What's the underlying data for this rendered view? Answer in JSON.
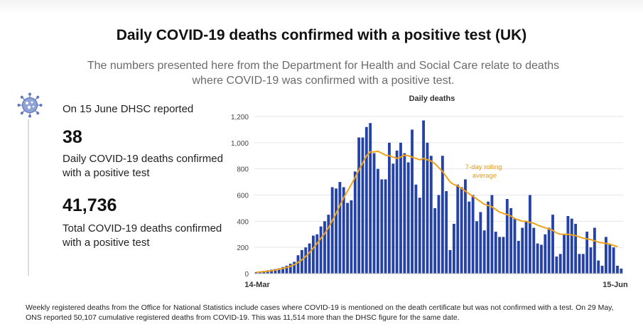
{
  "slide": {
    "title": "Daily COVID-19 deaths confirmed with a positive test (UK)",
    "subtitle": "The numbers presented here from the Department for Health and Social Care relate to deaths where COVID-19 was confirmed with a positive test."
  },
  "stats": {
    "reported_label": "On 15 June DHSC reported",
    "daily_value": "38",
    "daily_desc": "Daily COVID-19 deaths confirmed with a positive test",
    "total_value": "41,736",
    "total_desc": "Total COVID-19 deaths confirmed with a positive test"
  },
  "icons": {
    "virus": "virus-icon"
  },
  "colors": {
    "bar": "#2442a8",
    "line": "#f0a21a",
    "gridline": "#e6e6e6"
  },
  "chart_data": {
    "type": "bar",
    "title": "Daily deaths",
    "x_start_label": "14-Mar",
    "x_end_label": "15-Jun",
    "ylim": [
      0,
      1200
    ],
    "yticks": [
      0,
      200,
      400,
      600,
      800,
      1000,
      1200
    ],
    "ytick_labels": [
      "0",
      "200",
      "400",
      "600",
      "800",
      "1,000",
      "1,200"
    ],
    "annotation": "7-day rolling average",
    "series": [
      {
        "type": "bar",
        "values": [
          10,
          15,
          20,
          25,
          30,
          35,
          40,
          50,
          60,
          75,
          90,
          140,
          180,
          200,
          230,
          290,
          300,
          360,
          400,
          450,
          660,
          650,
          700,
          660,
          540,
          560,
          780,
          1040,
          1040,
          1120,
          1150,
          920,
          800,
          720,
          720,
          1000,
          840,
          940,
          1000,
          920,
          850,
          1100,
          680,
          580,
          1170,
          1000,
          900,
          500,
          600,
          900,
          630,
          180,
          380,
          680,
          660,
          720,
          550,
          600,
          400,
          470,
          330,
          550,
          600,
          320,
          280,
          280,
          570,
          500,
          420,
          250,
          350,
          400,
          600,
          350,
          230,
          220,
          300,
          350,
          450,
          130,
          150,
          300,
          440,
          420,
          380,
          150,
          150,
          320,
          200,
          350,
          100,
          60,
          280,
          220,
          200,
          60,
          38
        ]
      },
      {
        "type": "line",
        "values": [
          10,
          12,
          15,
          18,
          22,
          27,
          33,
          40,
          47,
          56,
          68,
          85,
          105,
          130,
          160,
          195,
          230,
          270,
          305,
          350,
          405,
          460,
          520,
          580,
          630,
          680,
          735,
          790,
          845,
          900,
          930,
          930,
          935,
          920,
          905,
          900,
          890,
          880,
          890,
          905,
          900,
          890,
          880,
          870,
          880,
          870,
          860,
          840,
          810,
          780,
          740,
          700,
          680,
          670,
          650,
          630,
          610,
          590,
          570,
          550,
          530,
          520,
          510,
          490,
          470,
          460,
          450,
          440,
          420,
          410,
          400,
          400,
          390,
          385,
          370,
          360,
          350,
          340,
          330,
          310,
          300,
          300,
          300,
          295,
          290,
          280,
          270,
          265,
          260,
          250,
          240,
          235,
          230,
          225,
          215,
          205
        ]
      }
    ]
  },
  "footnote": "Weekly registered deaths from the Office for National Statistics include cases where COVID-19 is mentioned on the death certificate but was not confirmed with a test. On 29 May, ONS reported 50,107 cumulative registered deaths from COVID-19. This was 11,514 more than the DHSC figure for the same date."
}
